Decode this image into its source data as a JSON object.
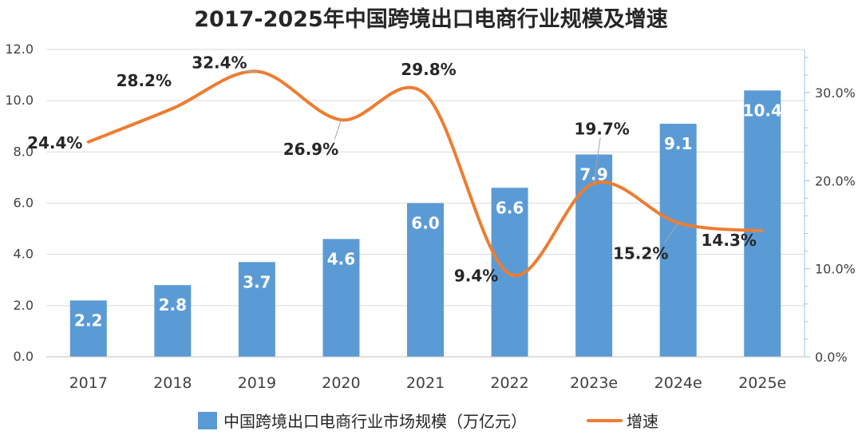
{
  "chart_data": {
    "type": "bar",
    "title": "2017-2025年中国跨境出口电商行业规模及增速",
    "categories": [
      "2017",
      "2018",
      "2019",
      "2020",
      "2021",
      "2022",
      "2023e",
      "2024e",
      "2025e"
    ],
    "series": [
      {
        "name": "中国跨境出口电商行业市场规模（万亿元）",
        "type": "bar",
        "axis": "left",
        "color": "#5B9BD5",
        "values": [
          2.2,
          2.8,
          3.7,
          4.6,
          6.0,
          6.6,
          7.9,
          9.1,
          10.4
        ],
        "labels": [
          "2.2",
          "2.8",
          "3.7",
          "4.6",
          "6.0",
          "6.6",
          "7.9",
          "9.1",
          "10.4"
        ]
      },
      {
        "name": "增速",
        "type": "line",
        "axis": "right",
        "color": "#ED7D31",
        "values": [
          24.4,
          28.2,
          32.4,
          26.9,
          29.8,
          9.4,
          19.7,
          15.2,
          14.3
        ],
        "labels": [
          "24.4%",
          "28.2%",
          "32.4%",
          "26.9%",
          "29.8%",
          "9.4%",
          "19.7%",
          "15.2%",
          "14.3%"
        ]
      }
    ],
    "y_left": {
      "min": 0,
      "max": 12,
      "ticks": [
        "0.0",
        "2.0",
        "4.0",
        "6.0",
        "8.0",
        "10.0",
        "12.0"
      ]
    },
    "y_right": {
      "min": 0,
      "max": 35,
      "ticks": [
        "0.0%",
        "10.0%",
        "20.0%",
        "30.0%"
      ]
    },
    "grid": true,
    "legend_position": "bottom"
  }
}
